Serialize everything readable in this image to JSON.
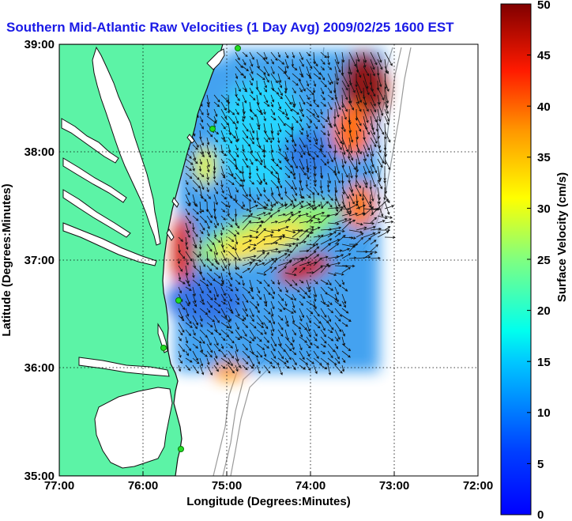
{
  "title": "Southern Mid-Atlantic Raw Velocities (1 Day Avg) 2009/02/25 1600 EST",
  "x_axis": {
    "label": "Longitude (Degrees:Minutes)",
    "ticks": [
      "77:00",
      "76:00",
      "75:00",
      "74:00",
      "73:00",
      "72:00"
    ],
    "range": [
      -77,
      -72
    ]
  },
  "y_axis": {
    "label": "Latitude (Degrees:Minutes)",
    "ticks": [
      "39:00",
      "38:00",
      "37:00",
      "36:00",
      "35:00"
    ],
    "range": [
      35,
      39
    ]
  },
  "colorbar": {
    "label": "Surface Velocity (cm/s)",
    "ticks": [
      "50",
      "45",
      "40",
      "35",
      "30",
      "25",
      "20",
      "15",
      "10",
      "5",
      "0"
    ],
    "range": [
      0,
      50
    ],
    "colormap": "jet"
  },
  "colors": {
    "land": "#5cf3a6",
    "water": "#ffffff",
    "coastline": "#000000",
    "bathymetry": "#9a9a9a",
    "stations": "#22dd22",
    "title": "#1a1ae6"
  },
  "grid": "dotted"
}
